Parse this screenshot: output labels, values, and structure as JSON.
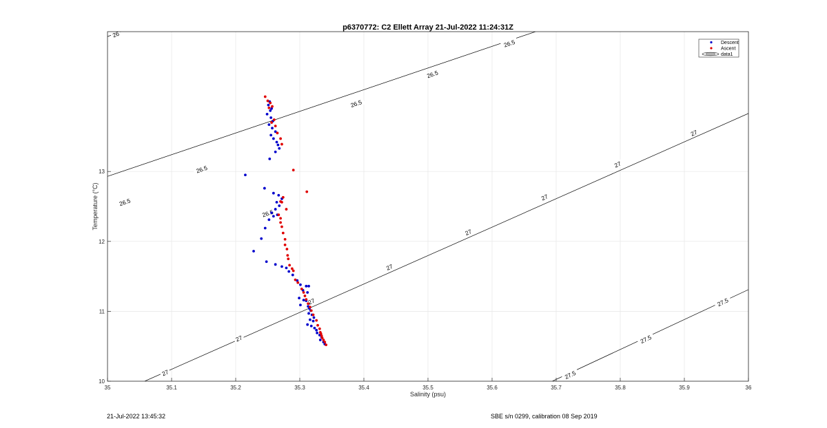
{
  "footer": {
    "left": "21-Jul-2022 13:45:32",
    "right": "SBE s/n 0299, calibration 08 Sep 2019"
  },
  "chart_data": {
    "type": "scatter",
    "title": "p6370772: C2 Ellett Array 21-Jul-2022 11:24:31Z",
    "xlabel": "Salinity (psu)",
    "ylabel": "Temperature (°C)",
    "xlim": [
      35,
      36
    ],
    "ylim": [
      10,
      15
    ],
    "xticks": [
      "35",
      "35.1",
      "35.2",
      "35.3",
      "35.4",
      "35.5",
      "35.6",
      "35.7",
      "35.8",
      "35.9",
      "36"
    ],
    "yticks": [
      "10",
      "11",
      "12",
      "13"
    ],
    "grid": true,
    "legend_position": "top-right",
    "legend": [
      "Descent",
      "Ascent",
      "data1"
    ],
    "colors": {
      "Descent": "#0000cc",
      "Ascent": "#e00000",
      "contour": "#000000"
    },
    "contours": [
      {
        "level": "26",
        "points": [
          [
            35.0,
            14.93
          ],
          [
            35.035,
            15.05
          ]
        ],
        "labels": [
          [
            35.013,
            14.96
          ]
        ]
      },
      {
        "level": "26.5",
        "points": [
          [
            35.0,
            12.93
          ],
          [
            35.684,
            15.05
          ]
        ],
        "labels": [
          [
            35.027,
            12.56
          ],
          [
            35.147,
            13.03
          ],
          [
            35.388,
            13.97
          ],
          [
            35.507,
            14.39
          ],
          [
            35.627,
            14.83
          ],
          [
            35.25,
            12.4
          ]
        ]
      },
      {
        "level": "27",
        "points": [
          [
            35.058,
            10.0
          ],
          [
            36.0,
            13.83
          ]
        ],
        "labels": [
          [
            35.09,
            10.12
          ],
          [
            35.205,
            10.61
          ],
          [
            35.44,
            11.63
          ],
          [
            35.563,
            12.13
          ],
          [
            35.682,
            12.63
          ],
          [
            35.796,
            13.1
          ],
          [
            35.915,
            13.55
          ],
          [
            35.318,
            11.14
          ]
        ]
      },
      {
        "level": "27.5",
        "points": [
          [
            35.694,
            10.0
          ],
          [
            36.0,
            11.31
          ]
        ],
        "labels": [
          [
            35.722,
            10.09
          ],
          [
            35.84,
            10.6
          ],
          [
            35.96,
            11.13
          ]
        ]
      }
    ],
    "series": [
      {
        "name": "Descent",
        "points": [
          [
            35.253,
            14.0
          ],
          [
            35.251,
            13.95
          ],
          [
            35.256,
            13.9
          ],
          [
            35.254,
            13.87
          ],
          [
            35.249,
            13.82
          ],
          [
            35.255,
            13.77
          ],
          [
            35.258,
            13.72
          ],
          [
            35.252,
            13.67
          ],
          [
            35.257,
            13.62
          ],
          [
            35.262,
            13.57
          ],
          [
            35.255,
            13.52
          ],
          [
            35.259,
            13.47
          ],
          [
            35.264,
            13.42
          ],
          [
            35.266,
            13.38
          ],
          [
            35.268,
            13.33
          ],
          [
            35.262,
            13.28
          ],
          [
            35.253,
            13.18
          ],
          [
            35.215,
            12.95
          ],
          [
            35.245,
            12.76
          ],
          [
            35.259,
            12.69
          ],
          [
            35.267,
            12.66
          ],
          [
            35.272,
            12.61
          ],
          [
            35.264,
            12.56
          ],
          [
            35.268,
            12.51
          ],
          [
            35.262,
            12.46
          ],
          [
            35.256,
            12.41
          ],
          [
            35.259,
            12.36
          ],
          [
            35.265,
            12.38
          ],
          [
            35.252,
            12.31
          ],
          [
            35.246,
            12.19
          ],
          [
            35.24,
            12.04
          ],
          [
            35.228,
            11.86
          ],
          [
            35.248,
            11.71
          ],
          [
            35.262,
            11.67
          ],
          [
            35.272,
            11.64
          ],
          [
            35.279,
            11.62
          ],
          [
            35.283,
            11.57
          ],
          [
            35.289,
            11.52
          ],
          [
            35.296,
            11.44
          ],
          [
            35.301,
            11.38
          ],
          [
            35.31,
            11.36
          ],
          [
            35.314,
            11.36
          ],
          [
            35.305,
            11.3
          ],
          [
            35.312,
            11.27
          ],
          [
            35.299,
            11.19
          ],
          [
            35.306,
            11.16
          ],
          [
            35.31,
            11.15
          ],
          [
            35.301,
            11.09
          ],
          [
            35.313,
            11.07
          ],
          [
            35.315,
            11.04
          ],
          [
            35.317,
            11.01
          ],
          [
            35.314,
            10.97
          ],
          [
            35.319,
            10.95
          ],
          [
            35.322,
            10.91
          ],
          [
            35.316,
            10.88
          ],
          [
            35.321,
            10.86
          ],
          [
            35.312,
            10.81
          ],
          [
            35.318,
            10.79
          ],
          [
            35.323,
            10.76
          ],
          [
            35.326,
            10.73
          ],
          [
            35.327,
            10.69
          ],
          [
            35.331,
            10.66
          ],
          [
            35.334,
            10.63
          ],
          [
            35.332,
            10.59
          ],
          [
            35.337,
            10.56
          ],
          [
            35.339,
            10.53
          ]
        ]
      },
      {
        "name": "Ascent",
        "points": [
          [
            35.246,
            14.07
          ],
          [
            35.25,
            14.01
          ],
          [
            35.254,
            13.98
          ],
          [
            35.257,
            13.93
          ],
          [
            35.252,
            13.91
          ],
          [
            35.26,
            13.74
          ],
          [
            35.256,
            13.7
          ],
          [
            35.262,
            13.65
          ],
          [
            35.265,
            13.55
          ],
          [
            35.27,
            13.47
          ],
          [
            35.272,
            13.39
          ],
          [
            35.29,
            13.02
          ],
          [
            35.311,
            12.71
          ],
          [
            35.274,
            12.63
          ],
          [
            35.27,
            12.57
          ],
          [
            35.272,
            12.56
          ],
          [
            35.279,
            12.46
          ],
          [
            35.267,
            12.38
          ],
          [
            35.27,
            12.33
          ],
          [
            35.27,
            12.27
          ],
          [
            35.272,
            12.21
          ],
          [
            35.274,
            12.12
          ],
          [
            35.277,
            12.03
          ],
          [
            35.277,
            11.95
          ],
          [
            35.28,
            11.89
          ],
          [
            35.281,
            11.8
          ],
          [
            35.282,
            11.75
          ],
          [
            35.284,
            11.66
          ],
          [
            35.288,
            11.61
          ],
          [
            35.29,
            11.58
          ],
          [
            35.293,
            11.45
          ],
          [
            35.297,
            11.41
          ],
          [
            35.303,
            11.32
          ],
          [
            35.306,
            11.27
          ],
          [
            35.308,
            11.22
          ],
          [
            35.31,
            11.17
          ],
          [
            35.313,
            11.11
          ],
          [
            35.316,
            11.06
          ],
          [
            35.318,
            11.01
          ],
          [
            35.321,
            10.95
          ],
          [
            35.326,
            10.87
          ],
          [
            35.328,
            10.8
          ],
          [
            35.331,
            10.75
          ],
          [
            35.332,
            10.7
          ],
          [
            35.333,
            10.68
          ],
          [
            35.334,
            10.65
          ],
          [
            35.335,
            10.62
          ],
          [
            35.337,
            10.59
          ],
          [
            35.339,
            10.56
          ],
          [
            35.341,
            10.52
          ]
        ]
      }
    ]
  }
}
